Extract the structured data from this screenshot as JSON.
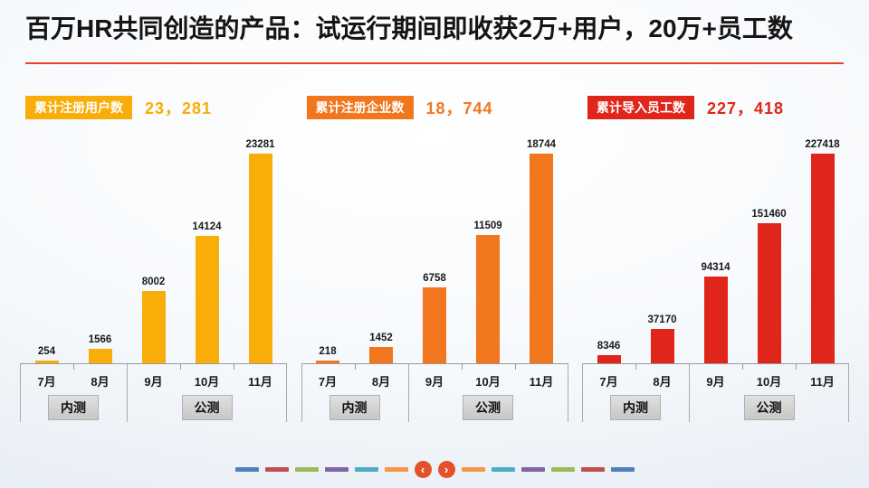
{
  "title": "百万HR共同创造的产品：试运行期间即收获2万+用户，20万+员工数",
  "title_rule_color": "#e8432a",
  "chart_data": [
    {
      "type": "bar",
      "title": "累计注册用户数",
      "headline_value": "23，281",
      "color": "#f8ad08",
      "categories": [
        "7月",
        "8月",
        "9月",
        "10月",
        "11月"
      ],
      "values": [
        254,
        1566,
        8002,
        14124,
        23281
      ],
      "ylim": [
        0,
        23281
      ],
      "grid": false,
      "legend_position": "none",
      "data_labels": true,
      "groups": [
        {
          "label": "内测",
          "span": 2
        },
        {
          "label": "公测",
          "span": 3
        }
      ]
    },
    {
      "type": "bar",
      "title": "累计注册企业数",
      "headline_value": "18，744",
      "color": "#f2761d",
      "categories": [
        "7月",
        "8月",
        "9月",
        "10月",
        "11月"
      ],
      "values": [
        218,
        1452,
        6758,
        11509,
        18744
      ],
      "ylim": [
        0,
        18744
      ],
      "grid": false,
      "legend_position": "none",
      "data_labels": true,
      "groups": [
        {
          "label": "内测",
          "span": 2
        },
        {
          "label": "公测",
          "span": 3
        }
      ]
    },
    {
      "type": "bar",
      "title": "累计导入员工数",
      "headline_value": "227，418",
      "color": "#e0251a",
      "categories": [
        "7月",
        "8月",
        "9月",
        "10月",
        "11月"
      ],
      "values": [
        8346,
        37170,
        94314,
        151460,
        227418
      ],
      "ylim": [
        0,
        227418
      ],
      "grid": false,
      "legend_position": "none",
      "data_labels": true,
      "groups": [
        {
          "label": "内测",
          "span": 2
        },
        {
          "label": "公测",
          "span": 3
        }
      ]
    }
  ],
  "pager": {
    "prev_label": "‹",
    "next_label": "›",
    "button_color": "#e4502a",
    "dash_colors_left": [
      "#4f81bd",
      "#c0504d",
      "#9bbb59",
      "#8064a2",
      "#4bacc6",
      "#f79646"
    ],
    "dash_colors_right": [
      "#f79646",
      "#4bacc6",
      "#8064a2",
      "#9bbb59",
      "#c0504d",
      "#4f81bd"
    ]
  }
}
